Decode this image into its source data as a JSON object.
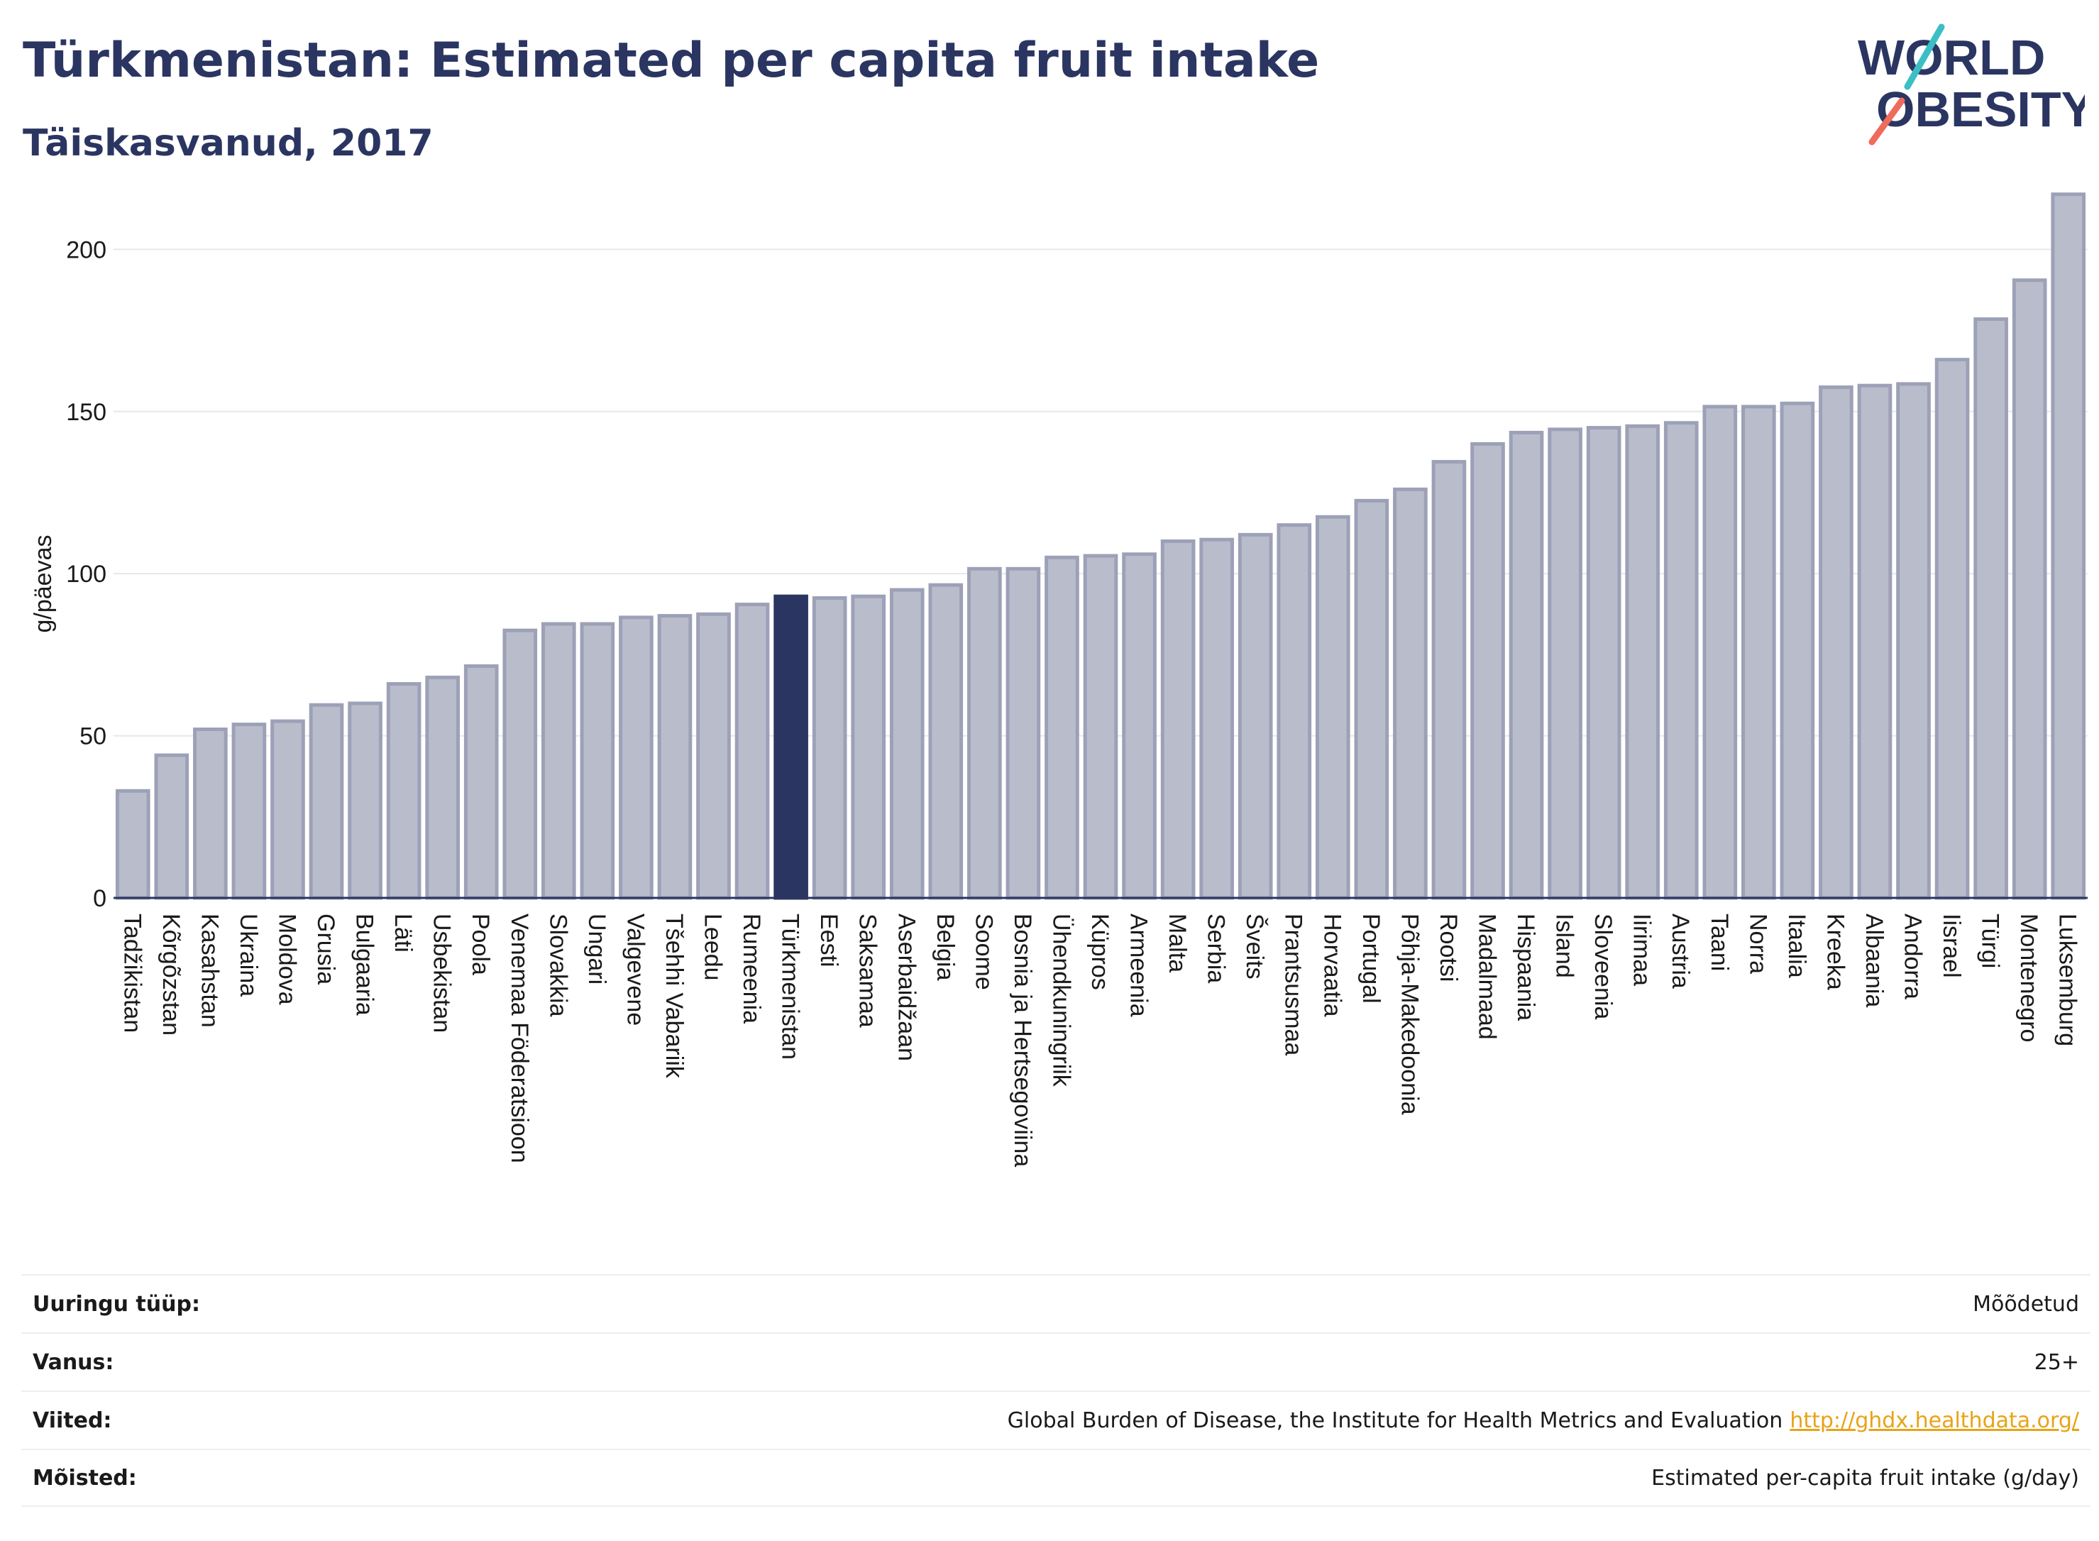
{
  "header": {
    "title": "Türkmenistan: Estimated per capita fruit intake",
    "subtitle": "Täiskasvanud, 2017"
  },
  "logo": {
    "line1": "WORLD",
    "line2": "OBESITY"
  },
  "colors": {
    "bar": "#b9bdcb",
    "bar_border": "#9da1b7",
    "highlight": "#2b3561",
    "title": "#2b3561",
    "link": "#e8a317",
    "logo_teal": "#3bbfc4",
    "logo_coral": "#ef6b5b"
  },
  "chart_data": {
    "type": "bar",
    "title": "Türkmenistan: Estimated per capita fruit intake",
    "subtitle": "Täiskasvanud, 2017",
    "ylabel": "g/päevas",
    "ylim": [
      0,
      220
    ],
    "yticks": [
      0,
      50,
      100,
      150,
      200
    ],
    "grid": true,
    "highlight": "Türkmenistan",
    "categories": [
      "Tadžikistan",
      "Kõrgõzstan",
      "Kasahstan",
      "Ukraina",
      "Moldova",
      "Grusia",
      "Bulgaaria",
      "Läti",
      "Usbekistan",
      "Poola",
      "Venemaa Föderatsioon",
      "Slovakkia",
      "Ungari",
      "Valgevene",
      "Tšehhi Vabariik",
      "Leedu",
      "Rumeenia",
      "Türkmenistan",
      "Eesti",
      "Saksamaa",
      "Aserbaidžaan",
      "Belgia",
      "Soome",
      "Bosnia ja Hertsegoviina",
      "Ühendkuningriik",
      "Küpros",
      "Armeenia",
      "Malta",
      "Serbia",
      "Šveits",
      "Prantsusmaa",
      "Horvaatia",
      "Portugal",
      "Põhja-Makedoonia",
      "Rootsi",
      "Madalmaad",
      "Hispaania",
      "Island",
      "Sloveenia",
      "Iirimaa",
      "Austria",
      "Taani",
      "Norra",
      "Itaalia",
      "Kreeka",
      "Albaania",
      "Andorra",
      "Iisrael",
      "Türgi",
      "Montenegro",
      "Luksemburg"
    ],
    "values": [
      33,
      44,
      52,
      53.5,
      54.5,
      59.5,
      60,
      66,
      68,
      71.5,
      82.5,
      84.5,
      84.5,
      86.5,
      87,
      87.5,
      90.5,
      93,
      92.5,
      93,
      95,
      96.5,
      101.5,
      101.5,
      105,
      105.5,
      106,
      110,
      110.5,
      112,
      115,
      117.5,
      122.5,
      126,
      134.5,
      140,
      143.5,
      144.5,
      145,
      145.5,
      146.5,
      151.5,
      151.5,
      152.5,
      157.5,
      158,
      158.5,
      166,
      178.5,
      190.5,
      217
    ]
  },
  "meta": {
    "survey_label": "Uuringu tüüp:",
    "survey_value": "Mõõdetud",
    "age_label": "Vanus:",
    "age_value": "25+",
    "refs_label": "Viited:",
    "refs_value": "Global Burden of Disease, the Institute for Health Metrics and Evaluation",
    "refs_link": "http://ghdx.healthdata.org/",
    "defs_label": "Mõisted:",
    "defs_value": "Estimated per-capita fruit intake (g/day)"
  }
}
